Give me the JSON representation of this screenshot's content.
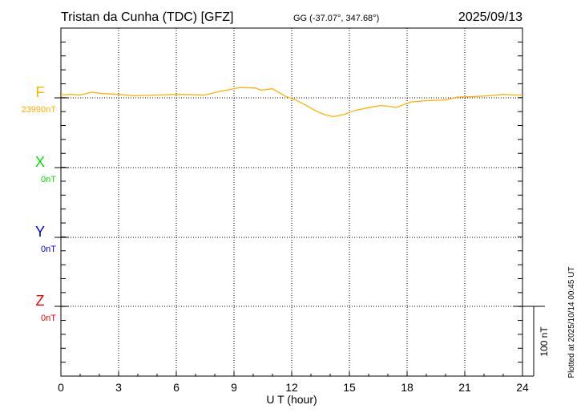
{
  "chart_data": {
    "type": "line",
    "title": "Tristan da Cunha (TDC)  [GFZ]",
    "subtitle": "GG (-37.07°, 347.68°)",
    "date": "2025/09/13",
    "xlabel": "U T (hour)",
    "xlim": [
      0,
      24
    ],
    "xticks": [
      "0",
      "3",
      "6",
      "9",
      "12",
      "15",
      "18",
      "21",
      "24"
    ],
    "grid": true,
    "scale_bar_label": "100 nT",
    "scale_bar_nT": 100,
    "footer": "Plotted at 2025/10/14 00:45 UT",
    "components": [
      {
        "name": "F",
        "baseline_label": "23990nT",
        "baseline": 23990,
        "color": "#FFB000",
        "x": [
          0,
          0.5,
          1.0,
          1.6,
          2.2,
          3.0,
          3.8,
          5.0,
          6.1,
          7.5,
          8.2,
          8.8,
          9.3,
          10.1,
          10.4,
          11.0,
          11.7,
          12.2,
          12.7,
          13.2,
          13.7,
          14.15,
          14.7,
          15.3,
          16.0,
          16.6,
          17.0,
          17.4,
          17.8,
          18.2,
          19.0,
          20.0,
          20.6,
          21.6,
          22.3,
          23.0,
          23.5,
          24
        ],
        "values": [
          23994,
          23995,
          23994,
          23998,
          23996,
          23995,
          23993,
          23994,
          23995,
          23994,
          23999,
          24002,
          24005,
          24004,
          24001,
          24003,
          23992,
          23987,
          23980,
          23972,
          23966,
          23963,
          23966,
          23972,
          23976,
          23979,
          23978,
          23976,
          23980,
          23984,
          23986,
          23987,
          23991,
          23992,
          23993,
          23995,
          23994,
          23994
        ]
      },
      {
        "name": "X",
        "baseline_label": "0nT",
        "baseline": 0,
        "color": "#00E000",
        "x": [],
        "values": []
      },
      {
        "name": "Y",
        "baseline_label": "0nT",
        "baseline": 0,
        "color": "#0000E0",
        "x": [],
        "values": []
      },
      {
        "name": "Z",
        "baseline_label": "0nT",
        "baseline": 0,
        "color": "#FF0000",
        "x": [],
        "values": []
      }
    ]
  }
}
